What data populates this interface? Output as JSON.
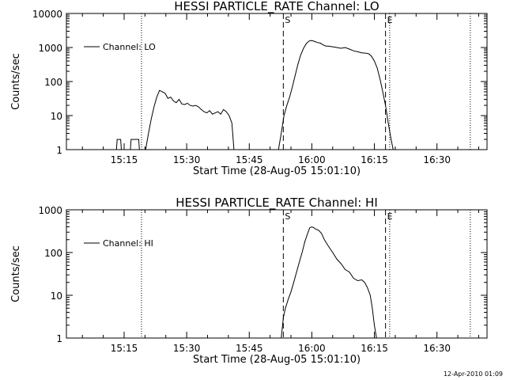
{
  "figure": {
    "timestamp": "12-Apr-2010 01:09"
  },
  "chart_data": [
    {
      "type": "line",
      "title": "HESSI PARTICLE_RATE Channel: LO",
      "xlabel": "Start Time (28-Aug-05 15:01:10)",
      "ylabel": "Counts/sec",
      "yscale": "log",
      "xlim": [
        "15:01:10",
        "16:42:00"
      ],
      "ylim": [
        1,
        10000
      ],
      "x_ticks": [
        "15:15",
        "15:30",
        "15:45",
        "16:00",
        "16:15",
        "16:30"
      ],
      "y_ticks": [
        "1",
        "10",
        "100",
        "1000",
        "10000"
      ],
      "grid": false,
      "legend": {
        "placement": "top-left",
        "entries": [
          "Channel: LO"
        ]
      },
      "series": [
        {
          "name": "Channel: LO",
          "segments": [
            {
              "x": [
                "15:13:10",
                "15:13:20",
                "15:14:10",
                "15:14:20"
              ],
              "y": [
                1,
                2,
                2,
                1
              ]
            },
            {
              "x": [
                "15:16:30",
                "15:16:40",
                "15:18:30",
                "15:18:40"
              ],
              "y": [
                1,
                2,
                2,
                1
              ]
            },
            {
              "x": [
                "15:20:10",
                "15:20:50",
                "15:21:30",
                "15:22:10",
                "15:22:50",
                "15:23:30",
                "15:24:10",
                "15:24:50",
                "15:25:30",
                "15:26:10",
                "15:26:50",
                "15:27:30",
                "15:28:10",
                "15:28:50",
                "15:29:30",
                "15:30:10",
                "15:30:50",
                "15:31:30",
                "15:32:10",
                "15:32:50",
                "15:33:30",
                "15:34:10",
                "15:34:50",
                "15:35:30",
                "15:36:10",
                "15:36:50",
                "15:37:30",
                "15:38:10",
                "15:38:50",
                "15:39:30",
                "15:40:10",
                "15:40:50",
                "15:41:20"
              ],
              "y": [
                1,
                3,
                8,
                18,
                35,
                55,
                50,
                45,
                32,
                35,
                27,
                24,
                30,
                22,
                21,
                23,
                20,
                19,
                20,
                18,
                15,
                13,
                12,
                14,
                11,
                12,
                13,
                11,
                15,
                13,
                10,
                6,
                1
              ]
            },
            {
              "x": [
                "15:52:00",
                "15:52:40",
                "15:53:20",
                "15:54:00",
                "15:54:40",
                "15:55:20",
                "15:56:00",
                "15:56:40",
                "15:57:20",
                "15:58:00",
                "15:58:40",
                "15:59:20",
                "16:00:00",
                "16:00:40",
                "16:01:20",
                "16:02:00",
                "16:02:40",
                "16:03:20",
                "16:04:00",
                "16:05:00",
                "16:06:00",
                "16:07:00",
                "16:08:00",
                "16:09:00",
                "16:10:00",
                "16:11:00",
                "16:12:00",
                "16:13:00",
                "16:13:40",
                "16:14:20",
                "16:15:00",
                "16:15:40",
                "16:16:20",
                "16:17:00",
                "16:17:40",
                "16:18:20",
                "16:19:00",
                "16:19:30"
              ],
              "y": [
                1,
                3,
                10,
                20,
                35,
                70,
                150,
                320,
                600,
                950,
                1300,
                1550,
                1600,
                1500,
                1400,
                1350,
                1200,
                1100,
                1100,
                1050,
                1000,
                950,
                1000,
                900,
                800,
                750,
                700,
                680,
                650,
                550,
                400,
                250,
                120,
                50,
                20,
                6,
                2,
                1
              ]
            }
          ]
        }
      ],
      "markers": [
        {
          "x": "15:19:10",
          "style": "dotted",
          "label": ""
        },
        {
          "x": "15:53:10",
          "style": "dashed",
          "label": "S"
        },
        {
          "x": "16:17:40",
          "style": "dashed",
          "label": "E"
        },
        {
          "x": "16:18:40",
          "style": "dotted",
          "label": ""
        },
        {
          "x": "16:38:00",
          "style": "dotted",
          "label": ""
        }
      ]
    },
    {
      "type": "line",
      "title": "HESSI PARTICLE_RATE Channel: HI",
      "xlabel": "Start Time (28-Aug-05 15:01:10)",
      "ylabel": "Counts/sec",
      "yscale": "log",
      "xlim": [
        "15:01:10",
        "16:42:00"
      ],
      "ylim": [
        1,
        1000
      ],
      "x_ticks": [
        "15:15",
        "15:30",
        "15:45",
        "16:00",
        "16:15",
        "16:30"
      ],
      "y_ticks": [
        "1",
        "10",
        "100",
        "1000"
      ],
      "grid": false,
      "legend": {
        "placement": "top-left",
        "entries": [
          "Channel: HI"
        ]
      },
      "series": [
        {
          "name": "Channel: HI",
          "segments": [
            {
              "x": [
                "15:52:40",
                "15:53:10",
                "15:53:40",
                "15:54:20",
                "15:55:00",
                "15:55:40",
                "15:56:20",
                "15:57:00",
                "15:57:40",
                "15:58:20",
                "15:59:00",
                "15:59:30",
                "16:00:00",
                "16:00:30",
                "16:01:00",
                "16:01:40",
                "16:02:20",
                "16:03:00",
                "16:04:00",
                "16:05:00",
                "16:06:00",
                "16:07:00",
                "16:08:00",
                "16:09:00",
                "16:10:00",
                "16:11:00",
                "16:12:00",
                "16:12:40",
                "16:13:20",
                "16:14:00",
                "16:14:30",
                "16:15:00",
                "16:15:30"
              ],
              "y": [
                1,
                3,
                5,
                8,
                12,
                20,
                35,
                60,
                100,
                180,
                280,
                380,
                400,
                380,
                350,
                330,
                280,
                200,
                140,
                100,
                70,
                55,
                40,
                35,
                25,
                22,
                23,
                20,
                15,
                10,
                5,
                2,
                1
              ]
            }
          ]
        }
      ],
      "markers": [
        {
          "x": "15:19:10",
          "style": "dotted",
          "label": ""
        },
        {
          "x": "15:53:10",
          "style": "dashed",
          "label": "S"
        },
        {
          "x": "16:17:40",
          "style": "dashed",
          "label": "E"
        },
        {
          "x": "16:18:40",
          "style": "dotted",
          "label": ""
        },
        {
          "x": "16:38:00",
          "style": "dotted",
          "label": ""
        }
      ]
    }
  ]
}
